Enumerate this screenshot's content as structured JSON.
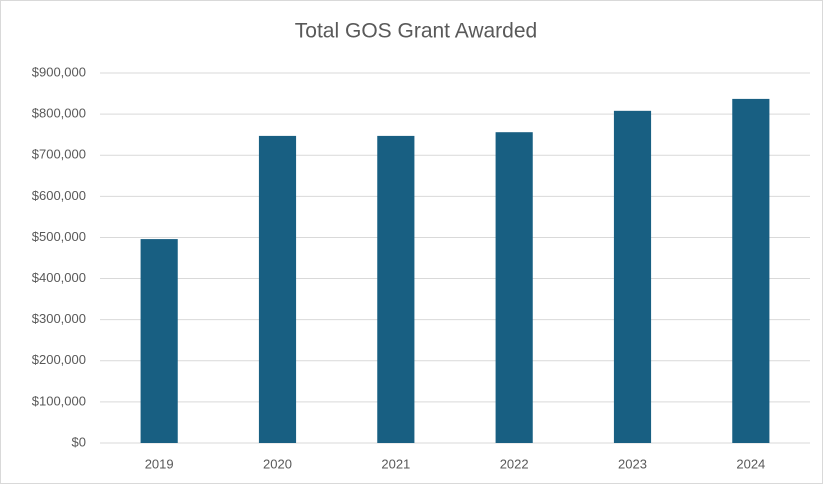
{
  "chart_data": {
    "type": "bar",
    "title": "Total GOS Grant Awarded",
    "categories": [
      "2019",
      "2020",
      "2021",
      "2022",
      "2023",
      "2024"
    ],
    "values": [
      496000,
      747000,
      747000,
      756000,
      808000,
      837000
    ],
    "color": "#185f82",
    "ylim": [
      0,
      900000
    ],
    "yticks": [
      {
        "value": 0,
        "label": "$0"
      },
      {
        "value": 100000,
        "label": "$100,000"
      },
      {
        "value": 200000,
        "label": "$200,000"
      },
      {
        "value": 300000,
        "label": "$300,000"
      },
      {
        "value": 400000,
        "label": "$400,000"
      },
      {
        "value": 500000,
        "label": "$500,000"
      },
      {
        "value": 600000,
        "label": "$600,000"
      },
      {
        "value": 700000,
        "label": "$700,000"
      },
      {
        "value": 800000,
        "label": "$800,000"
      },
      {
        "value": 900000,
        "label": "$900,000"
      }
    ],
    "grid": true
  }
}
